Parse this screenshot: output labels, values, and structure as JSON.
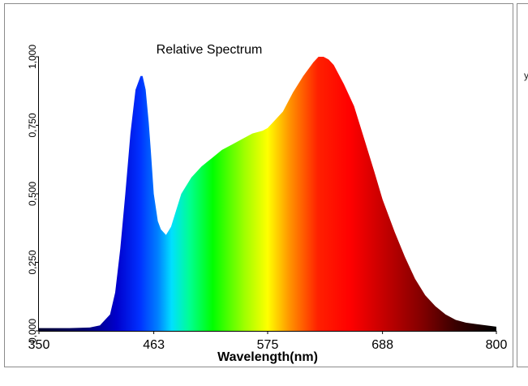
{
  "chart_data": {
    "type": "area",
    "title": "Relative Spectrum",
    "xlabel": "Wavelength(nm)",
    "ylabel": "",
    "xlim": [
      350,
      800
    ],
    "ylim": [
      0,
      1.0
    ],
    "x_ticks": [
      350,
      463,
      575,
      688,
      800
    ],
    "x_tick_labels": [
      "350",
      "463",
      "575",
      "688",
      "800"
    ],
    "y_ticks": [
      0,
      0.25,
      0.5,
      0.75,
      1.0
    ],
    "y_tick_labels": [
      "0,000",
      "0,250",
      "0,500",
      "0,750",
      "1,000"
    ],
    "grid": false,
    "legend": "none",
    "fill": "spectral color gradient under curve",
    "series": [
      {
        "x": [
          350,
          380,
          400,
          410,
          420,
          425,
          430,
          435,
          440,
          445,
          450,
          452,
          455,
          458,
          460,
          463,
          467,
          470,
          475,
          480,
          485,
          490,
          500,
          510,
          520,
          530,
          540,
          550,
          560,
          570,
          575,
          580,
          590,
          600,
          610,
          620,
          625,
          630,
          635,
          640,
          650,
          660,
          670,
          680,
          688,
          700,
          710,
          720,
          730,
          740,
          750,
          760,
          770,
          780,
          790,
          800
        ],
        "y": [
          0.01,
          0.01,
          0.012,
          0.02,
          0.06,
          0.14,
          0.3,
          0.5,
          0.72,
          0.88,
          0.93,
          0.93,
          0.88,
          0.76,
          0.66,
          0.5,
          0.4,
          0.37,
          0.35,
          0.38,
          0.44,
          0.5,
          0.56,
          0.6,
          0.63,
          0.66,
          0.68,
          0.7,
          0.72,
          0.73,
          0.74,
          0.76,
          0.8,
          0.87,
          0.93,
          0.98,
          1.0,
          1.0,
          0.99,
          0.97,
          0.9,
          0.82,
          0.7,
          0.58,
          0.48,
          0.36,
          0.27,
          0.19,
          0.13,
          0.09,
          0.06,
          0.04,
          0.03,
          0.025,
          0.02,
          0.015
        ]
      }
    ]
  },
  "side_panel": {
    "letter": "y"
  }
}
